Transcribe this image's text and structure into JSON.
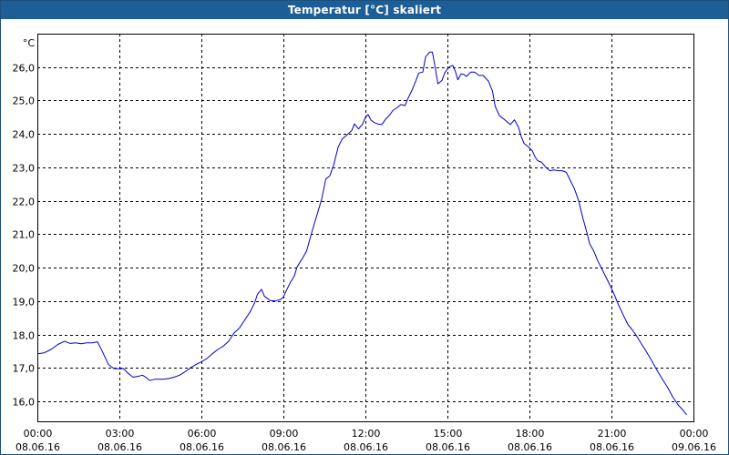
{
  "window": {
    "title": "Temperatur [°C] skaliert"
  },
  "chart_data": {
    "type": "line",
    "title": "Temperatur [°C] skaliert",
    "unit_label": "°C",
    "ylim": [
      15.4,
      27.0
    ],
    "y_ticks": [
      "26,0",
      "25,0",
      "24,0",
      "23,0",
      "22,0",
      "21,0",
      "20,0",
      "19,0",
      "18,0",
      "17,0",
      "16,0"
    ],
    "y_tick_values": [
      26,
      25,
      24,
      23,
      22,
      21,
      20,
      19,
      18,
      17,
      16
    ],
    "x_ticks": [
      {
        "time": "00:00",
        "date": "08.06.16"
      },
      {
        "time": "03:00",
        "date": "08.06.16"
      },
      {
        "time": "06:00",
        "date": "08.06.16"
      },
      {
        "time": "09:00",
        "date": "08.06.16"
      },
      {
        "time": "12:00",
        "date": "08.06.16"
      },
      {
        "time": "15:00",
        "date": "08.06.16"
      },
      {
        "time": "18:00",
        "date": "08.06.16"
      },
      {
        "time": "21:00",
        "date": "08.06.16"
      },
      {
        "time": "00:00",
        "date": "09.06.16"
      }
    ],
    "x_range_hours": [
      0,
      24
    ],
    "grid": true,
    "line_color": "#0000cc",
    "series": [
      {
        "points": [
          [
            0.0,
            17.42
          ],
          [
            0.25,
            17.45
          ],
          [
            0.5,
            17.55
          ],
          [
            0.75,
            17.7
          ],
          [
            1.0,
            17.8
          ],
          [
            1.2,
            17.73
          ],
          [
            1.4,
            17.75
          ],
          [
            1.6,
            17.72
          ],
          [
            1.8,
            17.75
          ],
          [
            2.0,
            17.75
          ],
          [
            2.2,
            17.78
          ],
          [
            2.4,
            17.45
          ],
          [
            2.6,
            17.1
          ],
          [
            2.8,
            16.98
          ],
          [
            3.0,
            16.97
          ],
          [
            3.15,
            16.98
          ],
          [
            3.3,
            16.85
          ],
          [
            3.5,
            16.72
          ],
          [
            3.7,
            16.75
          ],
          [
            3.85,
            16.78
          ],
          [
            4.0,
            16.7
          ],
          [
            4.1,
            16.62
          ],
          [
            4.3,
            16.66
          ],
          [
            4.6,
            16.66
          ],
          [
            4.8,
            16.68
          ],
          [
            5.0,
            16.72
          ],
          [
            5.2,
            16.78
          ],
          [
            5.4,
            16.88
          ],
          [
            5.6,
            17.0
          ],
          [
            5.8,
            17.1
          ],
          [
            6.0,
            17.18
          ],
          [
            6.2,
            17.28
          ],
          [
            6.4,
            17.42
          ],
          [
            6.6,
            17.55
          ],
          [
            6.8,
            17.65
          ],
          [
            7.0,
            17.8
          ],
          [
            7.2,
            18.05
          ],
          [
            7.4,
            18.2
          ],
          [
            7.6,
            18.45
          ],
          [
            7.8,
            18.7
          ],
          [
            7.95,
            18.95
          ],
          [
            8.05,
            19.2
          ],
          [
            8.2,
            19.35
          ],
          [
            8.3,
            19.15
          ],
          [
            8.5,
            19.02
          ],
          [
            8.7,
            19.0
          ],
          [
            8.9,
            19.05
          ],
          [
            9.0,
            19.12
          ],
          [
            9.1,
            19.3
          ],
          [
            9.25,
            19.55
          ],
          [
            9.4,
            19.75
          ],
          [
            9.5,
            20.02
          ],
          [
            9.7,
            20.28
          ],
          [
            9.85,
            20.5
          ],
          [
            10.0,
            20.95
          ],
          [
            10.2,
            21.5
          ],
          [
            10.4,
            22.05
          ],
          [
            10.55,
            22.65
          ],
          [
            10.7,
            22.75
          ],
          [
            10.85,
            23.1
          ],
          [
            11.0,
            23.6
          ],
          [
            11.15,
            23.85
          ],
          [
            11.3,
            23.95
          ],
          [
            11.5,
            24.1
          ],
          [
            11.6,
            24.3
          ],
          [
            11.75,
            24.15
          ],
          [
            11.9,
            24.3
          ],
          [
            12.0,
            24.5
          ],
          [
            12.1,
            24.58
          ],
          [
            12.2,
            24.42
          ],
          [
            12.3,
            24.35
          ],
          [
            12.45,
            24.3
          ],
          [
            12.6,
            24.28
          ],
          [
            12.75,
            24.45
          ],
          [
            12.9,
            24.58
          ],
          [
            13.0,
            24.7
          ],
          [
            13.15,
            24.78
          ],
          [
            13.3,
            24.88
          ],
          [
            13.45,
            24.85
          ],
          [
            13.55,
            25.05
          ],
          [
            13.7,
            25.3
          ],
          [
            13.85,
            25.6
          ],
          [
            13.95,
            25.82
          ],
          [
            14.1,
            25.85
          ],
          [
            14.2,
            26.3
          ],
          [
            14.35,
            26.45
          ],
          [
            14.45,
            26.45
          ],
          [
            14.55,
            26.0
          ],
          [
            14.65,
            25.5
          ],
          [
            14.8,
            25.6
          ],
          [
            14.9,
            25.82
          ],
          [
            15.0,
            25.95
          ],
          [
            15.1,
            26.02
          ],
          [
            15.2,
            26.05
          ],
          [
            15.3,
            25.85
          ],
          [
            15.38,
            25.62
          ],
          [
            15.5,
            25.8
          ],
          [
            15.6,
            25.78
          ],
          [
            15.7,
            25.72
          ],
          [
            15.85,
            25.85
          ],
          [
            16.0,
            25.85
          ],
          [
            16.15,
            25.75
          ],
          [
            16.3,
            25.75
          ],
          [
            16.5,
            25.58
          ],
          [
            16.65,
            25.28
          ],
          [
            16.75,
            24.82
          ],
          [
            16.9,
            24.55
          ],
          [
            17.1,
            24.42
          ],
          [
            17.3,
            24.28
          ],
          [
            17.45,
            24.42
          ],
          [
            17.6,
            24.2
          ],
          [
            17.7,
            23.92
          ],
          [
            17.8,
            23.72
          ],
          [
            17.95,
            23.62
          ],
          [
            18.1,
            23.5
          ],
          [
            18.2,
            23.32
          ],
          [
            18.3,
            23.2
          ],
          [
            18.45,
            23.15
          ],
          [
            18.6,
            23.0
          ],
          [
            18.75,
            22.9
          ],
          [
            18.9,
            22.92
          ],
          [
            19.05,
            22.9
          ],
          [
            19.2,
            22.9
          ],
          [
            19.35,
            22.85
          ],
          [
            19.5,
            22.6
          ],
          [
            19.65,
            22.35
          ],
          [
            19.8,
            22.0
          ],
          [
            19.95,
            21.5
          ],
          [
            20.1,
            21.05
          ],
          [
            20.2,
            20.72
          ],
          [
            20.35,
            20.5
          ],
          [
            20.5,
            20.2
          ],
          [
            20.7,
            19.88
          ],
          [
            20.9,
            19.55
          ],
          [
            21.1,
            19.2
          ],
          [
            21.25,
            18.9
          ],
          [
            21.45,
            18.55
          ],
          [
            21.6,
            18.3
          ],
          [
            21.75,
            18.15
          ],
          [
            21.9,
            17.98
          ],
          [
            22.05,
            17.78
          ],
          [
            22.25,
            17.52
          ],
          [
            22.45,
            17.25
          ],
          [
            22.65,
            16.95
          ],
          [
            22.85,
            16.68
          ],
          [
            23.05,
            16.42
          ],
          [
            23.25,
            16.12
          ],
          [
            23.45,
            15.88
          ],
          [
            23.6,
            15.75
          ],
          [
            23.75,
            15.6
          ]
        ]
      }
    ]
  }
}
